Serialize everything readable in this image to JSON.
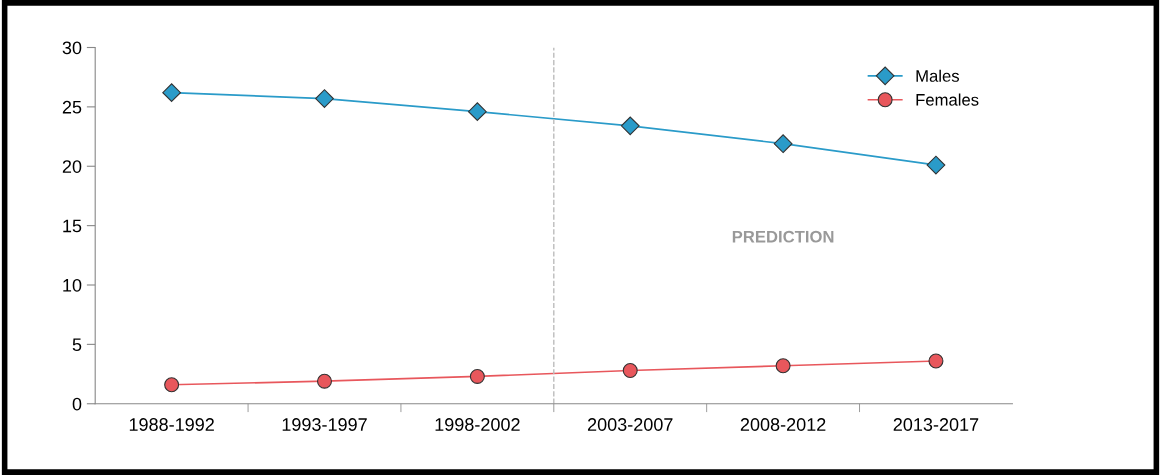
{
  "chart_data": {
    "type": "line",
    "categories": [
      "1988-1992",
      "1993-1997",
      "1998-2002",
      "2003-2007",
      "2008-2012",
      "2013-2017"
    ],
    "series": [
      {
        "name": "Males",
        "color": "#2a9bc9",
        "marker": "diamond",
        "values": [
          26.2,
          25.7,
          24.6,
          23.4,
          21.9,
          20.1
        ]
      },
      {
        "name": "Females",
        "color": "#e8575c",
        "marker": "circle",
        "values": [
          1.6,
          1.9,
          2.3,
          2.8,
          3.2,
          3.6
        ]
      }
    ],
    "ylim": [
      0,
      30
    ],
    "yticks": [
      0,
      5,
      10,
      15,
      20,
      25,
      30
    ],
    "grid": false,
    "legend": "top right",
    "annotations": [
      "PREDICTION"
    ]
  }
}
